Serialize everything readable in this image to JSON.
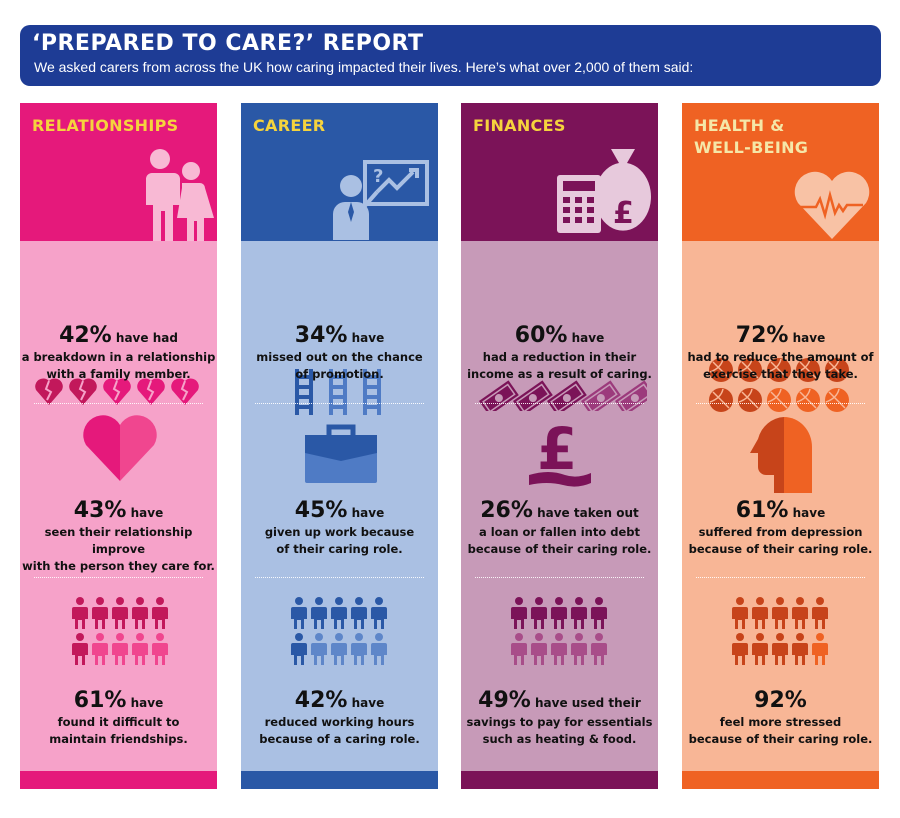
{
  "header": {
    "title": "‘PREPARED TO CARE?’ REPORT",
    "subtitle": "We asked carers from across the UK how caring impacted their lives. Here’s what over 2,000 of them said:"
  },
  "colors": {
    "banner": "#1e3c95",
    "relationships_dark": "#e5197b",
    "relationships_light": "#f6a2c9",
    "career_dark": "#2a58a6",
    "career_light": "#aac0e3",
    "finances_dark": "#7b1358",
    "finances_light": "#c79ab8",
    "health_dark": "#ef6223",
    "health_light": "#f8b696"
  },
  "columns": [
    {
      "title": "RELATIONSHIPS",
      "stats": [
        {
          "pct": "42%",
          "suffix": " have had",
          "lines": [
            "a breakdown in a relationship",
            "with a family member."
          ],
          "icon": "broken-hearts-icon"
        },
        {
          "pct": "43%",
          "suffix": " have",
          "lines": [
            "seen their relationship improve",
            "with the person they care for."
          ],
          "icon": "heart-icon"
        },
        {
          "pct": "61%",
          "suffix": " have",
          "lines": [
            "found it difficult to",
            "maintain friendships."
          ],
          "icon": "people-icon"
        }
      ]
    },
    {
      "title": "CAREER",
      "stats": [
        {
          "pct": "34%",
          "suffix": " have",
          "lines": [
            "missed out on the chance",
            "of promotion."
          ],
          "icon": "ladders-icon"
        },
        {
          "pct": "45%",
          "suffix": " have",
          "lines": [
            "given up work because",
            "of their caring role."
          ],
          "icon": "briefcase-icon"
        },
        {
          "pct": "42%",
          "suffix": " have",
          "lines": [
            "reduced working hours",
            "because of a caring role."
          ],
          "icon": "people-icon"
        }
      ]
    },
    {
      "title": "FINANCES",
      "stats": [
        {
          "pct": "60%",
          "suffix": " have",
          "lines": [
            "had a reduction in their",
            "income as a result of caring."
          ],
          "icon": "banknotes-icon"
        },
        {
          "pct": "26%",
          "suffix": " have taken out",
          "lines": [
            "a loan or fallen into debt",
            "because of their caring role."
          ],
          "icon": "pound-icon"
        },
        {
          "pct": "49%",
          "suffix": " have used their",
          "lines": [
            "savings to pay for essentials",
            "such as heating & food."
          ],
          "icon": "people-icon"
        }
      ]
    },
    {
      "title": "HEALTH &\nWELL-BEING",
      "stats": [
        {
          "pct": "72%",
          "suffix": " have",
          "lines": [
            "had to reduce the amount of",
            "exercise that they take."
          ],
          "icon": "balls-icon"
        },
        {
          "pct": "61%",
          "suffix": " have",
          "lines": [
            "suffered from depression",
            "because of their caring role."
          ],
          "icon": "head-icon"
        },
        {
          "pct": "92%",
          "suffix": "",
          "lines": [
            "feel more stressed",
            "because of their caring role."
          ],
          "icon": "people-icon"
        }
      ]
    }
  ]
}
